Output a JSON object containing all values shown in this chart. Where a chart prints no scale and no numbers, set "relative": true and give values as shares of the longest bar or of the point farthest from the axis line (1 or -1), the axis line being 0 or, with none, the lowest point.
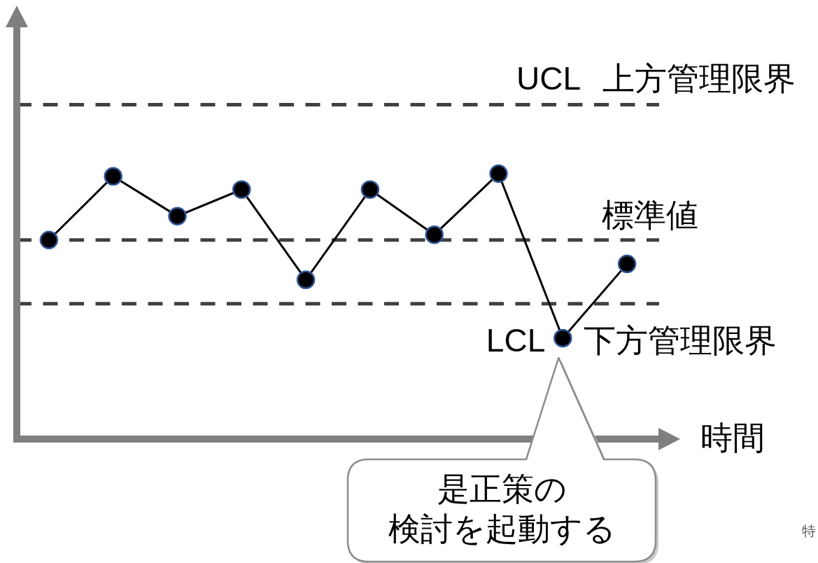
{
  "chart_data": {
    "type": "line",
    "relative": true,
    "xlabel": "時間",
    "categories": [
      null,
      null,
      null,
      null,
      null,
      null,
      null,
      null,
      null,
      null
    ],
    "series": [
      {
        "color": "#000000",
        "values": [
          0.75,
          0.99,
          0.84,
          0.94,
          0.6,
          0.94,
          0.77,
          1,
          0.38,
          0.66
        ]
      }
    ],
    "marker": "circle",
    "ref_lines": [
      {
        "axis": "y",
        "value": 1.26,
        "label": "UCL 上方管理限界",
        "color": "#404040",
        "line_style": "dashed"
      },
      {
        "axis": "y",
        "value": 0.75,
        "label": "標準値",
        "color": "#404040",
        "line_style": "dashed"
      },
      {
        "axis": "y",
        "value": 0.51,
        "label": "LCL 下方管理限界",
        "color": "#404040",
        "line_style": "dashed"
      }
    ],
    "annotations": [
      "是正策の",
      "検討を起動する",
      "特"
    ]
  }
}
